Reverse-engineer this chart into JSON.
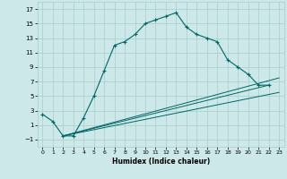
{
  "xlabel": "Humidex (Indice chaleur)",
  "ylabel": "",
  "bg_color": "#cce8e8",
  "grid_color": "#aacccc",
  "line_color": "#006666",
  "xlim": [
    -0.5,
    23.5
  ],
  "ylim": [
    -2,
    18
  ],
  "xticks": [
    0,
    1,
    2,
    3,
    4,
    5,
    6,
    7,
    8,
    9,
    10,
    11,
    12,
    13,
    14,
    15,
    16,
    17,
    18,
    19,
    20,
    21,
    22,
    23
  ],
  "yticks": [
    -1,
    1,
    3,
    5,
    7,
    9,
    11,
    13,
    15,
    17
  ],
  "main_x": [
    0,
    1,
    2,
    3,
    4,
    5,
    6,
    7,
    8,
    9,
    10,
    11,
    12,
    13,
    14,
    15,
    16,
    17,
    18,
    19,
    20,
    21,
    22
  ],
  "main_y": [
    2.5,
    1.5,
    -0.5,
    -0.5,
    2.0,
    5.0,
    8.5,
    12.0,
    12.5,
    13.5,
    15.0,
    15.5,
    16.0,
    16.5,
    14.5,
    13.5,
    13.0,
    12.5,
    10.0,
    9.0,
    8.0,
    6.5,
    6.5
  ],
  "line1_x": [
    2,
    23
  ],
  "line1_y": [
    -0.5,
    5.5
  ],
  "line2_x": [
    2,
    23
  ],
  "line2_y": [
    -0.5,
    7.5
  ],
  "line3_x": [
    2,
    22
  ],
  "line3_y": [
    -0.5,
    6.5
  ]
}
